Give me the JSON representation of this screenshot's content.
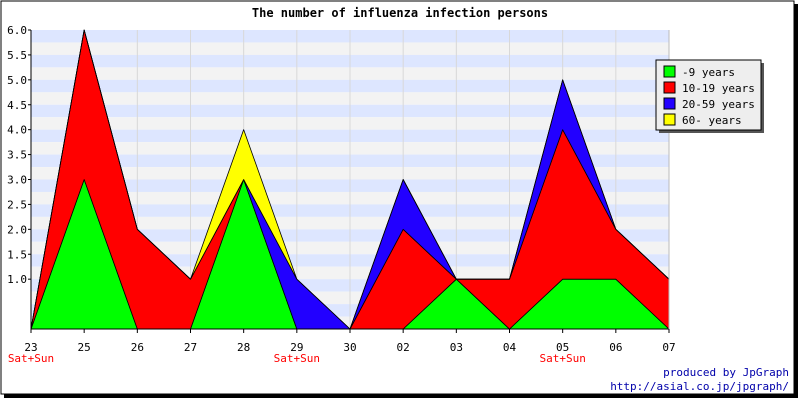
{
  "chart_data": {
    "type": "area",
    "stacked": true,
    "title": "The number of influenza infection persons",
    "xlabel": "",
    "ylabel": "",
    "ylim": [
      0,
      6
    ],
    "y_ticks": [
      "6.0",
      "5.5",
      "5.0",
      "4.5",
      "4.0",
      "3.5",
      "3.0",
      "2.5",
      "2.0",
      "1.5",
      "1.0"
    ],
    "y_tick_values": [
      6.0,
      5.5,
      5.0,
      4.5,
      4.0,
      3.5,
      3.0,
      2.5,
      2.0,
      1.5,
      1.0
    ],
    "categories": [
      "23",
      "25",
      "26",
      "27",
      "28",
      "29",
      "30",
      "02",
      "03",
      "04",
      "05",
      "06",
      "07"
    ],
    "weekend_marks": [
      {
        "category": "23",
        "label": "Sat+Sun"
      },
      {
        "category": "29",
        "label": "Sat+Sun"
      },
      {
        "category": "05",
        "label": "Sat+Sun"
      }
    ],
    "grid": true,
    "legend_position": "right",
    "series": [
      {
        "name": "-9 years",
        "color": "#00ff00",
        "values": [
          0,
          3,
          0,
          0,
          3,
          0,
          0,
          0,
          1,
          0,
          1,
          1,
          0
        ]
      },
      {
        "name": "10-19 years",
        "color": "#ff0000",
        "values": [
          0,
          3,
          2,
          1,
          0,
          0,
          0,
          2,
          0,
          1,
          3,
          1,
          1
        ]
      },
      {
        "name": "20-59 years",
        "color": "#2200ff",
        "values": [
          0,
          0,
          0,
          0,
          0,
          1,
          0,
          1,
          0,
          0,
          1,
          0,
          0
        ]
      },
      {
        "name": "60- years",
        "color": "#ffff00",
        "values": [
          0,
          0,
          0,
          0,
          1,
          0,
          0,
          0,
          0,
          0,
          0,
          0,
          0
        ]
      }
    ]
  },
  "footer": {
    "credit": "produced by JpGraph",
    "url": "http://asial.co.jp/jpgraph/"
  },
  "colors": {
    "band_blue": "#dde6ff",
    "band_grey": "#f3f3f3",
    "weekend_text": "#ff0000",
    "footer_text": "#0000aa"
  }
}
